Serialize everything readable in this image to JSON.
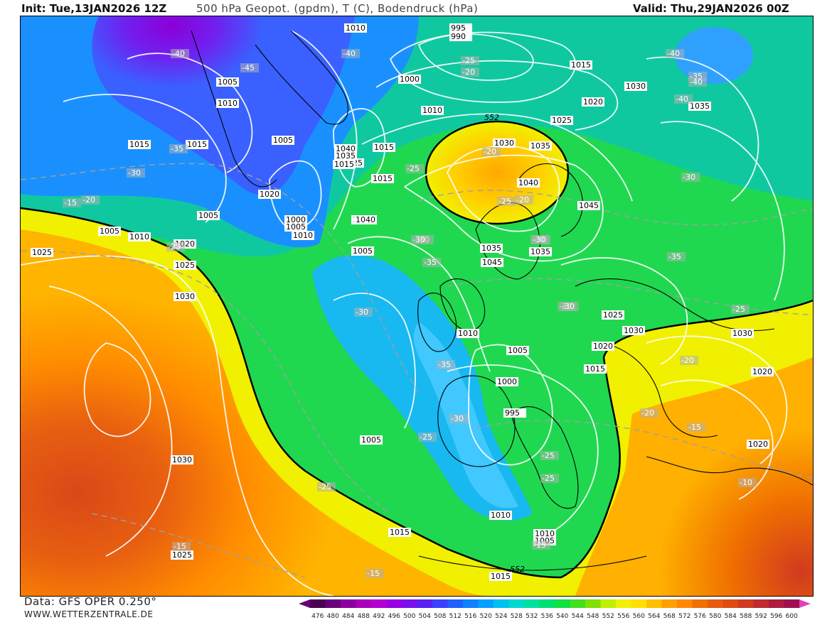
{
  "header": {
    "init": "Init: Tue,13JAN2026 12Z",
    "fields": "500 hPa Geopot. (gpdm), T (C), Bodendruck (hPa)",
    "valid": "Valid: Thu,29JAN2026 00Z"
  },
  "footer": {
    "data_source": "Data: GFS OPER 0.250°",
    "website": "WWW.WETTERZENTRALE.DE"
  },
  "legend": {
    "values": [
      "476",
      "480",
      "484",
      "488",
      "492",
      "496",
      "500",
      "504",
      "508",
      "512",
      "516",
      "520",
      "524",
      "528",
      "532",
      "536",
      "540",
      "544",
      "548",
      "552",
      "556",
      "560",
      "564",
      "568",
      "572",
      "576",
      "580",
      "584",
      "588",
      "592",
      "596",
      "600"
    ],
    "colors": [
      "#4a0050",
      "#6a007a",
      "#8b00a0",
      "#a800b8",
      "#b400d0",
      "#9a00e0",
      "#7a10f0",
      "#5a20f0",
      "#3a40ff",
      "#2060ff",
      "#1080ff",
      "#00a0ff",
      "#00c0f0",
      "#00d8d0",
      "#00e0a0",
      "#00e070",
      "#10e040",
      "#40e020",
      "#80e000",
      "#c0f000",
      "#f0f000",
      "#ffe000",
      "#ffc000",
      "#ffa000",
      "#ff8800",
      "#f07000",
      "#e85a10",
      "#e04a10",
      "#d03a20",
      "#c02a30",
      "#b01a40",
      "#a01050"
    ],
    "arrow_left_color": "#6a007a",
    "arrow_right_color": "#e040c0"
  },
  "map": {
    "pressure_labels": [
      "1010",
      "995",
      "990",
      "1015",
      "1030",
      "1035",
      "1000",
      "1005",
      "1010",
      "1020",
      "1025",
      "1015",
      "1015",
      "1005",
      "1010",
      "1015",
      "1020",
      "1040",
      "1035",
      "1025",
      "1015",
      "1030",
      "1035",
      "1040",
      "1020",
      "1000",
      "1005",
      "1010",
      "1015",
      "1005",
      "1010",
      "1005",
      "1015",
      "1020",
      "1025",
      "1030",
      "1035",
      "1045",
      "1035",
      "1040",
      "1010",
      "1005",
      "1045",
      "1025",
      "1030",
      "1020",
      "1015",
      "1005",
      "1000",
      "995",
      "1025",
      "1020",
      "1030",
      "1005",
      "1015",
      "1025",
      "1030",
      "1010",
      "1020",
      "1010",
      "1005",
      "1015"
    ],
    "temp_labels": [
      "-35",
      "-40",
      "-45",
      "-40",
      "-30",
      "-25",
      "-40",
      "-35",
      "-30",
      "-20",
      "-40",
      "-40",
      "-35",
      "-20",
      "-25",
      "-25",
      "-30",
      "-25",
      "-30",
      "-30",
      "-35",
      "-30",
      "-35",
      "-30",
      "-25",
      "-30",
      "-30",
      "-25",
      "-25",
      "-20",
      "-30",
      "-25",
      "-20",
      "-20",
      "-15",
      "-20",
      "-15",
      "-10",
      "-15",
      "-25",
      "-15",
      "-15"
    ],
    "height_552_labels": [
      "552",
      "552"
    ]
  }
}
